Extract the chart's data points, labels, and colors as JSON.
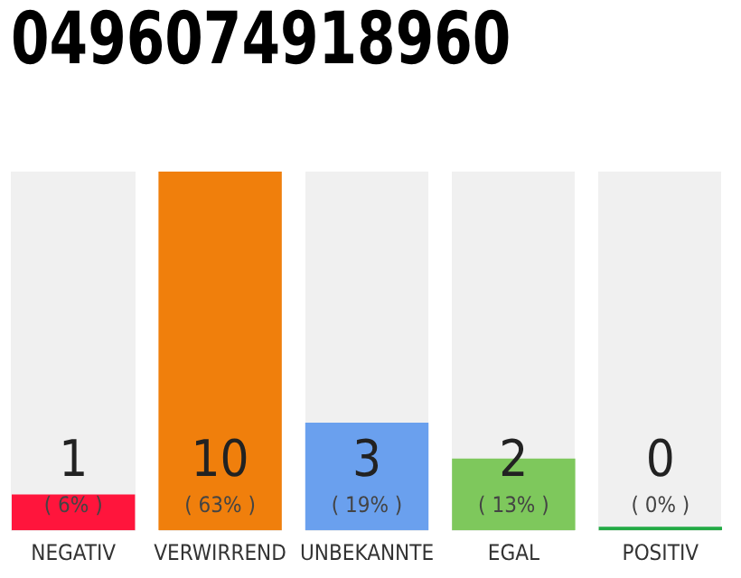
{
  "chart_data": {
    "type": "bar",
    "title": "0496074918960",
    "categories": [
      "NEGATIV",
      "VERWIRREND",
      "UNBEKANNTE",
      "EGAL",
      "POSITIV"
    ],
    "values": [
      1,
      10,
      3,
      2,
      0
    ],
    "colors": [
      "#ff153c",
      "#f07f0c",
      "#6aa0ee",
      "#7ec85c",
      "#22aa44"
    ],
    "ylim": [
      0,
      10
    ],
    "data_labels": true,
    "grid": false,
    "legend": false,
    "tick_labels": "x",
    "annotations": [
      "( 6% )",
      "( 63% )",
      "( 19% )",
      "( 13% )",
      "( 0% )"
    ]
  }
}
